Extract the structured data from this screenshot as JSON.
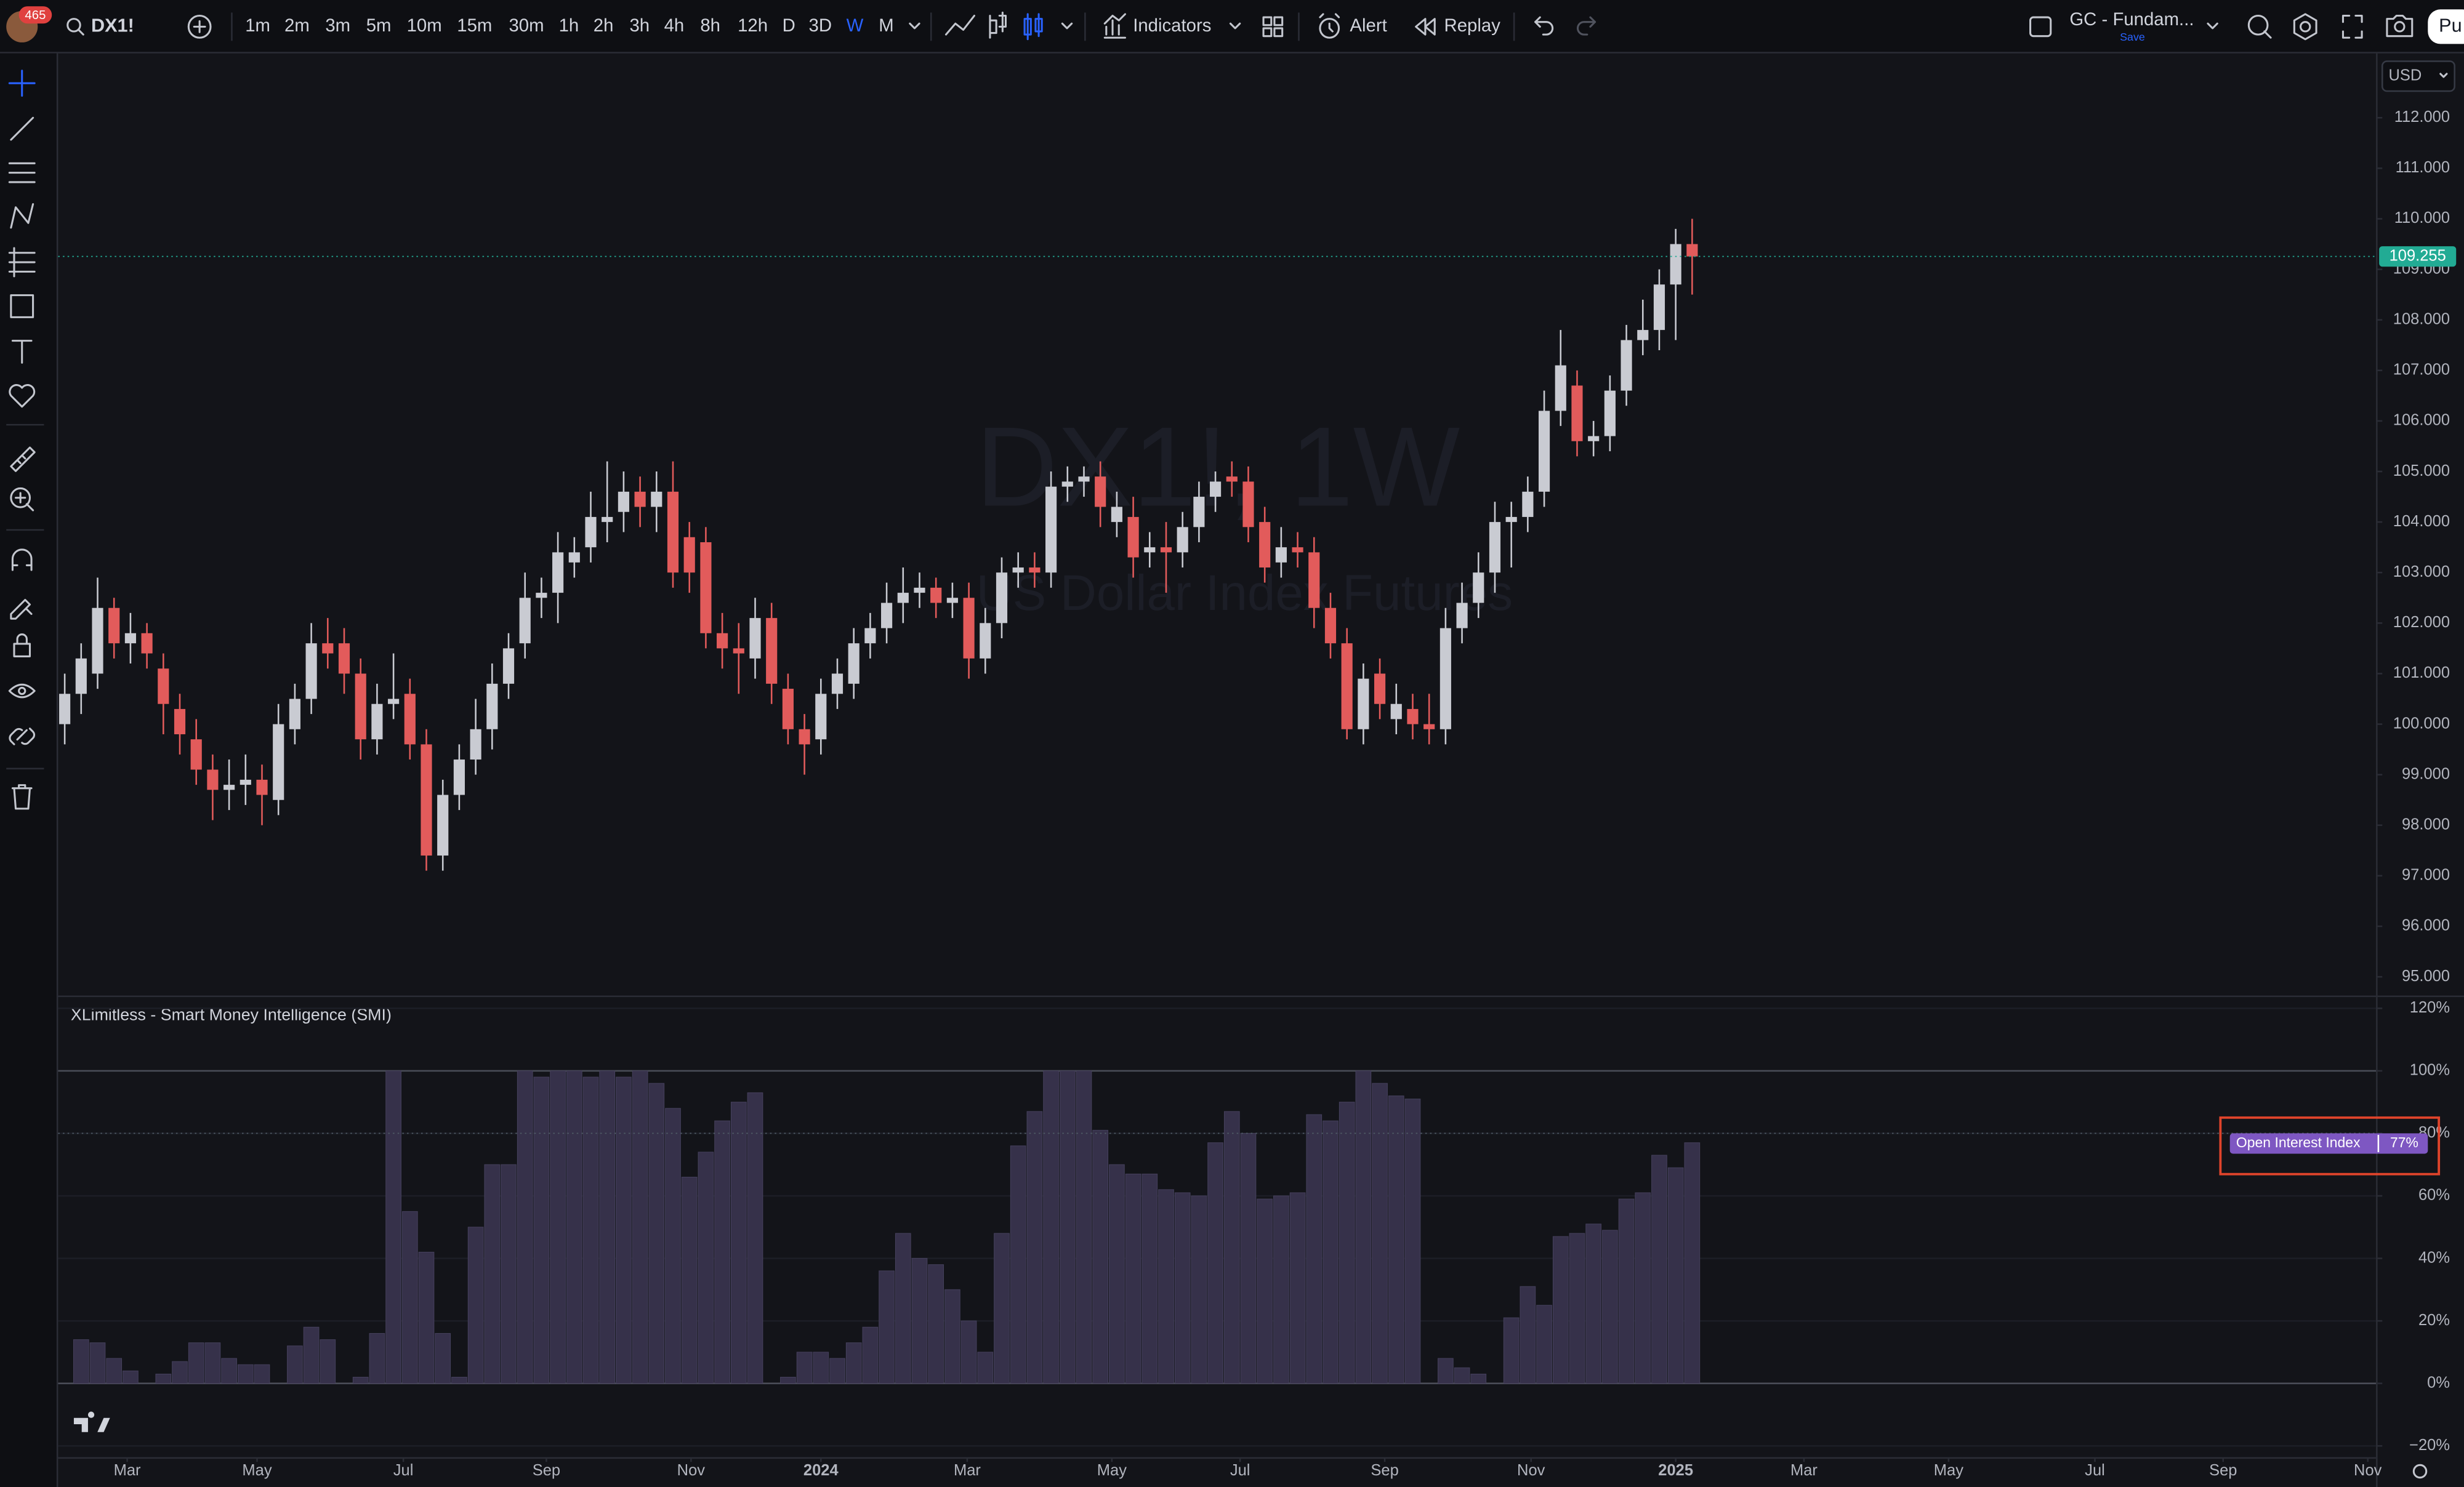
{
  "toolbar": {
    "badge": "465",
    "symbol": "DX1!",
    "intervals": [
      "1m",
      "2m",
      "3m",
      "5m",
      "10m",
      "15m",
      "30m",
      "1h",
      "2h",
      "3h",
      "4h",
      "8h",
      "12h",
      "D",
      "3D",
      "W",
      "M"
    ],
    "selected_interval": "W",
    "indicators": "Indicators",
    "alert": "Alert",
    "replay": "Replay",
    "layout": "GC - Fundam...",
    "save": "Save",
    "publish": "Pu"
  },
  "currency": "USD",
  "chart_data": [
    {
      "type": "candlestick",
      "title": "DX1!, 1W",
      "subtitle": "US Dollar Index Futures",
      "up_color": "#c9cbd2",
      "down_color": "#e25b5b",
      "last_price_color": "#22ab94",
      "open": [
        100.0,
        100.6,
        101.0,
        102.3,
        101.6,
        101.8,
        101.1,
        100.3,
        99.7,
        99.1,
        98.7,
        98.8,
        98.9,
        98.5,
        99.9,
        100.5,
        101.6,
        101.6,
        101.0,
        99.7,
        100.4,
        100.6,
        99.6,
        97.4,
        98.6,
        99.3,
        99.9,
        100.8,
        101.6,
        102.5,
        102.6,
        103.2,
        103.5,
        104.0,
        104.2,
        104.6,
        104.3,
        104.6,
        103.7,
        103.6,
        101.8,
        101.5,
        101.3,
        102.1,
        100.7,
        99.9,
        99.7,
        100.6,
        100.8,
        101.6,
        101.9,
        102.4,
        102.6,
        102.7,
        102.4,
        102.5,
        101.3,
        102.0,
        103.0,
        103.1,
        103.0,
        104.7,
        104.8,
        104.9,
        104.0,
        104.1,
        103.4,
        103.5,
        103.4,
        103.9,
        104.5,
        104.9,
        104.8,
        104.0,
        103.2,
        103.5,
        103.4,
        102.3,
        101.6,
        99.9,
        101.0,
        100.1,
        100.3,
        100.0,
        99.9,
        101.9,
        102.4,
        103.0,
        104.0,
        104.1,
        104.6,
        106.2,
        106.7,
        105.6,
        105.7,
        106.6,
        107.6,
        107.8,
        108.7,
        109.5
      ],
      "high": [
        101.0,
        101.6,
        102.9,
        102.5,
        102.2,
        102.0,
        101.4,
        100.6,
        100.1,
        99.4,
        99.3,
        99.4,
        99.2,
        100.4,
        100.8,
        102.0,
        102.1,
        101.9,
        101.3,
        100.8,
        101.4,
        100.9,
        99.9,
        98.9,
        99.6,
        100.5,
        101.2,
        101.8,
        103.0,
        102.9,
        103.8,
        103.7,
        104.6,
        105.2,
        105.0,
        104.9,
        105.0,
        105.2,
        104.0,
        103.9,
        102.2,
        102.0,
        102.5,
        102.4,
        101.0,
        100.2,
        100.9,
        101.3,
        101.9,
        102.2,
        102.8,
        103.1,
        103.0,
        102.9,
        102.8,
        102.8,
        102.3,
        103.3,
        103.4,
        103.4,
        105.0,
        105.1,
        105.1,
        105.2,
        104.6,
        104.5,
        103.8,
        104.0,
        104.2,
        104.8,
        105.0,
        105.2,
        105.1,
        104.3,
        103.9,
        103.8,
        103.7,
        102.6,
        101.9,
        101.2,
        101.3,
        100.8,
        100.6,
        100.6,
        102.3,
        102.8,
        103.4,
        104.4,
        104.4,
        104.9,
        106.6,
        107.8,
        107.0,
        106.0,
        106.9,
        107.9,
        108.4,
        109.0,
        109.8,
        110.0
      ],
      "low": [
        99.6,
        100.2,
        100.7,
        101.3,
        101.2,
        101.1,
        99.8,
        99.4,
        98.8,
        98.1,
        98.3,
        98.4,
        98.0,
        98.2,
        99.6,
        100.2,
        101.1,
        100.6,
        99.3,
        99.4,
        100.1,
        99.3,
        97.1,
        97.1,
        98.3,
        99.0,
        99.5,
        100.5,
        101.3,
        102.1,
        102.0,
        102.9,
        103.2,
        103.6,
        103.8,
        103.9,
        103.8,
        102.7,
        102.6,
        101.5,
        101.1,
        100.6,
        100.9,
        100.4,
        99.6,
        99.0,
        99.4,
        100.3,
        100.5,
        101.3,
        101.6,
        102.0,
        102.3,
        102.1,
        102.1,
        100.9,
        101.0,
        101.7,
        102.7,
        102.7,
        102.7,
        104.4,
        104.5,
        103.9,
        103.7,
        102.9,
        103.1,
        102.6,
        103.1,
        103.6,
        104.2,
        104.5,
        103.6,
        102.8,
        102.9,
        103.1,
        101.9,
        101.3,
        99.7,
        99.6,
        100.1,
        99.8,
        99.7,
        99.6,
        99.6,
        101.6,
        102.1,
        102.6,
        103.1,
        103.8,
        104.3,
        105.9,
        105.3,
        105.3,
        105.4,
        106.3,
        107.3,
        107.4,
        107.6,
        108.5
      ],
      "close": [
        100.6,
        101.3,
        102.3,
        101.6,
        101.8,
        101.4,
        100.4,
        99.8,
        99.1,
        98.7,
        98.8,
        98.9,
        98.6,
        100.0,
        100.5,
        101.6,
        101.4,
        101.0,
        99.7,
        100.4,
        100.5,
        99.6,
        97.4,
        98.6,
        99.3,
        99.9,
        100.8,
        101.5,
        102.5,
        102.6,
        103.4,
        103.4,
        104.1,
        104.1,
        104.6,
        104.3,
        104.6,
        103.0,
        103.0,
        101.8,
        101.5,
        101.4,
        102.1,
        100.8,
        99.9,
        99.6,
        100.6,
        101.0,
        101.6,
        101.9,
        102.4,
        102.6,
        102.7,
        102.4,
        102.5,
        101.3,
        102.0,
        103.0,
        103.1,
        103.0,
        104.7,
        104.8,
        104.9,
        104.3,
        104.3,
        103.3,
        103.5,
        103.4,
        103.9,
        104.5,
        104.8,
        104.8,
        103.9,
        103.1,
        103.5,
        103.4,
        102.3,
        101.6,
        99.9,
        100.9,
        100.4,
        100.4,
        100.0,
        99.9,
        101.9,
        102.4,
        103.0,
        104.0,
        104.1,
        104.6,
        106.2,
        107.1,
        105.6,
        105.7,
        106.6,
        107.6,
        107.8,
        108.7,
        109.5,
        109.255
      ],
      "xlim": [
        -0.4,
        140.6
      ],
      "xticks": [
        {
          "value": 3.8,
          "label": "Mar"
        },
        {
          "value": 11.7,
          "label": "May"
        },
        {
          "value": 20.6,
          "label": "Jul"
        },
        {
          "value": 29.3,
          "label": "Sep"
        },
        {
          "value": 38.1,
          "label": "Nov"
        },
        {
          "value": 46.0,
          "label": "2024"
        },
        {
          "value": 54.9,
          "label": "Mar"
        },
        {
          "value": 63.7,
          "label": "May"
        },
        {
          "value": 71.5,
          "label": "Jul"
        },
        {
          "value": 80.3,
          "label": "Sep"
        },
        {
          "value": 89.2,
          "label": "Nov"
        },
        {
          "value": 98.0,
          "label": "2025"
        },
        {
          "value": 105.8,
          "label": "Mar"
        },
        {
          "value": 114.6,
          "label": "May"
        },
        {
          "value": 123.5,
          "label": "Jul"
        },
        {
          "value": 131.3,
          "label": "Sep"
        },
        {
          "value": 140.1,
          "label": "Nov"
        }
      ],
      "ylim": [
        94.63,
        113.18
      ],
      "yticks": [
        {
          "value": 112,
          "label": "112.000"
        },
        {
          "value": 111,
          "label": "111.000"
        },
        {
          "value": 110,
          "label": "110.000"
        },
        {
          "value": 109,
          "label": "109.000"
        },
        {
          "value": 108,
          "label": "108.000"
        },
        {
          "value": 107,
          "label": "107.000"
        },
        {
          "value": 106,
          "label": "106.000"
        },
        {
          "value": 105,
          "label": "105.000"
        },
        {
          "value": 104,
          "label": "104.000"
        },
        {
          "value": 103,
          "label": "103.000"
        },
        {
          "value": 102,
          "label": "102.000"
        },
        {
          "value": 101,
          "label": "101.000"
        },
        {
          "value": 100,
          "label": "100.000"
        },
        {
          "value": 99,
          "label": "99.000"
        },
        {
          "value": 98,
          "label": "98.000"
        },
        {
          "value": 97,
          "label": "97.000"
        },
        {
          "value": 96,
          "label": "96.000"
        },
        {
          "value": 95,
          "label": "95.000"
        }
      ]
    },
    {
      "type": "bar",
      "title": "XLimitless - Smart Money Intelligence (SMI)",
      "series": [
        {
          "name": "Open Interest Index",
          "color": "#36314a",
          "values": [
            0,
            14,
            13,
            8,
            4,
            0,
            3,
            7,
            13,
            13,
            8,
            6,
            6,
            0,
            12,
            18,
            14,
            0,
            2,
            16,
            100,
            55,
            42,
            16,
            2,
            50,
            70,
            70,
            100,
            98,
            100,
            100,
            98,
            100,
            98,
            100,
            96,
            88,
            66,
            74,
            84,
            90,
            93,
            0,
            2,
            10,
            10,
            8,
            13,
            18,
            36,
            48,
            40,
            38,
            30,
            20,
            10,
            48,
            76,
            87,
            100,
            100,
            100,
            81,
            70,
            67,
            67,
            62,
            61,
            60,
            77,
            87,
            80,
            59,
            60,
            61,
            86,
            84,
            90,
            100,
            96,
            92,
            91,
            0,
            8,
            5,
            3,
            0,
            21,
            31,
            25,
            47,
            48,
            51,
            49,
            59,
            61,
            73,
            69,
            77
          ]
        }
      ],
      "last_label": "77%",
      "label_color": "#7e57c2",
      "hlines": [
        100,
        0
      ],
      "ylim": [
        -23.6,
        124.1
      ],
      "yticks": [
        {
          "value": 120,
          "label": "120%"
        },
        {
          "value": 100,
          "label": "100%"
        },
        {
          "value": 80,
          "label": "80%"
        },
        {
          "value": 60,
          "label": "60%"
        },
        {
          "value": 40,
          "label": "40%"
        },
        {
          "value": 20,
          "label": "20%"
        },
        {
          "value": 0,
          "label": "0%"
        },
        {
          "value": -20,
          "label": "−20%"
        }
      ]
    }
  ]
}
